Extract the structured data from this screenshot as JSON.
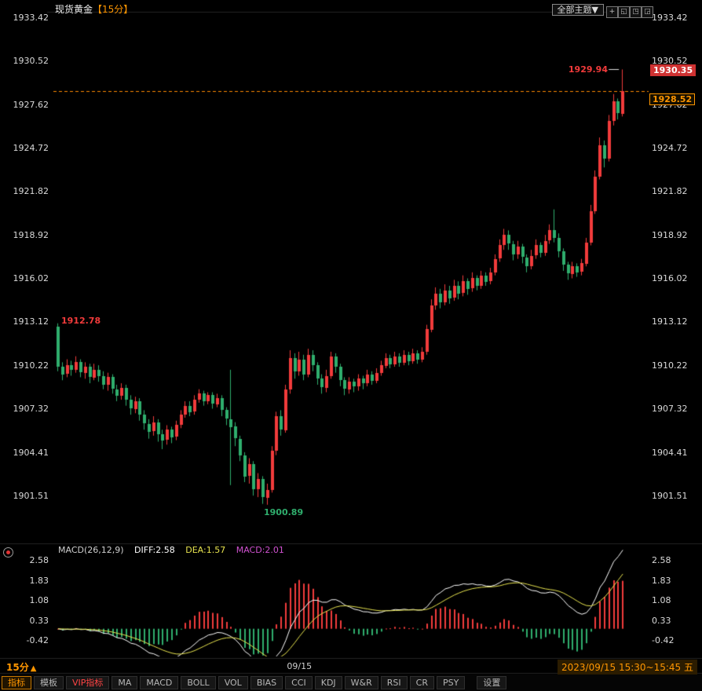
{
  "colors": {
    "up": "#f23b3b",
    "down": "#2fae6d",
    "accent_orange": "#ff9600",
    "dashed_line": "#ff8a00",
    "diff_line": "#ffffff",
    "dea_line": "#e8e44f",
    "macd_value": "#d052d0",
    "axis_text": "#d9d9d9",
    "tag_bg": "#cf3232",
    "vip_red": "#ff4545"
  },
  "header": {
    "instrument": "现货黄金",
    "period": "【15分】",
    "theme_button": "全部主题▼",
    "tool_icons": [
      {
        "name": "crosshair-icon",
        "glyph": "+"
      },
      {
        "name": "pane-bottomleft-icon",
        "glyph": "◱"
      },
      {
        "name": "pane-topright-icon",
        "glyph": "◳"
      },
      {
        "name": "pane-bottomright-icon",
        "glyph": "◲"
      }
    ]
  },
  "macd_header": {
    "name_label": "MACD(26,12,9)",
    "diff_label": "DIFF:2.58",
    "dea_label": "DEA:1.57",
    "macd_label": "MACD:2.01"
  },
  "bottom": {
    "period": "15分",
    "period_arrow": "▲",
    "datetime_range": "2023/09/15 15:30~15:45 五"
  },
  "toolbar": {
    "items": [
      {
        "key": "indicators",
        "label": "指标",
        "selected": true
      },
      {
        "key": "templates",
        "label": "模板"
      },
      {
        "key": "vip-indicators",
        "label": "VIP指标",
        "vip": true
      },
      {
        "key": "ma",
        "label": "MA"
      },
      {
        "key": "macd",
        "label": "MACD"
      },
      {
        "key": "boll",
        "label": "BOLL"
      },
      {
        "key": "vol",
        "label": "VOL"
      },
      {
        "key": "bias",
        "label": "BIAS"
      },
      {
        "key": "cci",
        "label": "CCI"
      },
      {
        "key": "kdj",
        "label": "KDJ"
      },
      {
        "key": "wr",
        "label": "W&R"
      },
      {
        "key": "rsi",
        "label": "RSI"
      },
      {
        "key": "cr",
        "label": "CR"
      },
      {
        "key": "psy",
        "label": "PSY"
      },
      {
        "key": "settings",
        "label": "设置",
        "gap": true
      }
    ]
  },
  "chart_data": [
    {
      "type": "candlestick",
      "title": "现货黄金【15分】",
      "timeframe": "15分钟K线",
      "y_ticks": [
        1933.42,
        1930.52,
        1927.62,
        1924.72,
        1921.82,
        1918.92,
        1916.02,
        1913.12,
        1910.22,
        1907.32,
        1904.41,
        1901.51
      ],
      "x_ticks": [
        {
          "label": "09/15",
          "index": 53
        }
      ],
      "annotations": {
        "open": 1912.78,
        "high": 1929.94,
        "low": 1900.89,
        "tag_price": 1930.35
      },
      "last_price_line": 1928.52,
      "candles": [
        [
          1912.78,
          1913.0,
          1909.8,
          1910.1
        ],
        [
          1910.1,
          1910.4,
          1909.2,
          1909.6
        ],
        [
          1909.6,
          1910.6,
          1909.4,
          1910.2
        ],
        [
          1910.2,
          1910.5,
          1909.5,
          1909.9
        ],
        [
          1909.9,
          1910.8,
          1909.7,
          1910.4
        ],
        [
          1910.4,
          1910.6,
          1909.4,
          1909.7
        ],
        [
          1909.7,
          1910.4,
          1909.3,
          1910.1
        ],
        [
          1910.1,
          1910.3,
          1909.0,
          1909.4
        ],
        [
          1909.4,
          1910.3,
          1909.2,
          1909.9
        ],
        [
          1909.9,
          1910.2,
          1909.1,
          1909.5
        ],
        [
          1909.5,
          1909.8,
          1908.6,
          1908.9
        ],
        [
          1908.9,
          1909.7,
          1908.5,
          1909.4
        ],
        [
          1909.4,
          1909.6,
          1908.3,
          1908.6
        ],
        [
          1908.6,
          1908.9,
          1907.8,
          1908.2
        ],
        [
          1908.2,
          1909.0,
          1907.9,
          1908.7
        ],
        [
          1908.7,
          1908.9,
          1907.5,
          1907.9
        ],
        [
          1907.9,
          1908.2,
          1906.9,
          1907.3
        ],
        [
          1907.3,
          1908.1,
          1907.0,
          1907.8
        ],
        [
          1907.8,
          1908.0,
          1906.5,
          1906.9
        ],
        [
          1906.9,
          1907.2,
          1905.9,
          1906.3
        ],
        [
          1906.3,
          1906.6,
          1905.3,
          1905.8
        ],
        [
          1905.8,
          1906.8,
          1905.5,
          1906.4
        ],
        [
          1906.4,
          1906.6,
          1905.1,
          1905.6
        ],
        [
          1905.6,
          1905.9,
          1904.6,
          1905.2
        ],
        [
          1905.2,
          1906.2,
          1904.9,
          1905.9
        ],
        [
          1905.9,
          1906.1,
          1905.0,
          1905.4
        ],
        [
          1905.4,
          1906.5,
          1905.2,
          1906.2
        ],
        [
          1906.2,
          1907.2,
          1906.0,
          1906.9
        ],
        [
          1906.9,
          1907.8,
          1906.7,
          1907.5
        ],
        [
          1907.5,
          1907.8,
          1906.8,
          1907.1
        ],
        [
          1907.1,
          1908.2,
          1906.9,
          1907.9
        ],
        [
          1907.9,
          1908.6,
          1907.7,
          1908.3
        ],
        [
          1908.3,
          1908.5,
          1907.5,
          1907.8
        ],
        [
          1907.8,
          1908.4,
          1907.6,
          1908.2
        ],
        [
          1908.2,
          1908.4,
          1907.3,
          1907.6
        ],
        [
          1907.6,
          1908.3,
          1907.4,
          1908.0
        ],
        [
          1908.0,
          1908.2,
          1906.8,
          1907.2
        ],
        [
          1907.2,
          1907.4,
          1906.2,
          1906.6
        ],
        [
          1906.6,
          1909.9,
          1902.2,
          1906.1
        ],
        [
          1906.1,
          1906.4,
          1904.8,
          1905.3
        ],
        [
          1905.3,
          1905.5,
          1903.8,
          1904.2
        ],
        [
          1904.2,
          1904.4,
          1902.4,
          1902.8
        ],
        [
          1902.8,
          1904.0,
          1902.3,
          1903.6
        ],
        [
          1903.6,
          1903.8,
          1901.5,
          1901.9
        ],
        [
          1901.9,
          1903.0,
          1901.4,
          1902.6
        ],
        [
          1902.6,
          1902.8,
          1900.95,
          1901.4
        ],
        [
          1901.4,
          1902.3,
          1900.89,
          1901.9
        ],
        [
          1901.9,
          1904.8,
          1901.7,
          1904.5
        ],
        [
          1904.5,
          1907.1,
          1904.2,
          1906.8
        ],
        [
          1906.8,
          1907.2,
          1905.5,
          1905.9
        ],
        [
          1905.9,
          1908.9,
          1905.7,
          1908.6
        ],
        [
          1908.6,
          1911.2,
          1908.3,
          1910.7
        ],
        [
          1910.7,
          1911.0,
          1909.3,
          1909.8
        ],
        [
          1909.8,
          1911.1,
          1909.5,
          1910.6
        ],
        [
          1910.6,
          1910.9,
          1909.2,
          1909.6
        ],
        [
          1909.6,
          1911.3,
          1909.4,
          1910.9
        ],
        [
          1910.9,
          1911.2,
          1909.8,
          1910.2
        ],
        [
          1910.2,
          1910.4,
          1908.9,
          1909.3
        ],
        [
          1909.3,
          1909.6,
          1908.3,
          1908.7
        ],
        [
          1908.7,
          1909.9,
          1908.4,
          1909.5
        ],
        [
          1909.5,
          1911.1,
          1909.3,
          1910.8
        ],
        [
          1910.8,
          1911.0,
          1909.7,
          1910.1
        ],
        [
          1910.1,
          1910.3,
          1908.8,
          1909.2
        ],
        [
          1909.2,
          1909.4,
          1908.2,
          1908.6
        ],
        [
          1908.6,
          1909.4,
          1908.3,
          1909.1
        ],
        [
          1909.1,
          1909.3,
          1908.4,
          1908.8
        ],
        [
          1908.8,
          1909.6,
          1908.5,
          1909.3
        ],
        [
          1909.3,
          1909.5,
          1908.6,
          1909.0
        ],
        [
          1909.0,
          1909.9,
          1908.8,
          1909.6
        ],
        [
          1909.6,
          1909.8,
          1908.9,
          1909.2
        ],
        [
          1909.2,
          1910.0,
          1909.0,
          1909.7
        ],
        [
          1909.7,
          1910.5,
          1909.5,
          1910.2
        ],
        [
          1910.2,
          1911.0,
          1910.0,
          1910.7
        ],
        [
          1910.7,
          1910.9,
          1910.0,
          1910.3
        ],
        [
          1910.3,
          1911.1,
          1910.1,
          1910.8
        ],
        [
          1910.8,
          1911.0,
          1910.1,
          1910.4
        ],
        [
          1910.4,
          1911.2,
          1910.2,
          1910.9
        ],
        [
          1910.9,
          1911.1,
          1910.2,
          1910.5
        ],
        [
          1910.5,
          1911.3,
          1910.3,
          1911.0
        ],
        [
          1911.0,
          1911.2,
          1910.3,
          1910.6
        ],
        [
          1910.6,
          1911.4,
          1910.4,
          1911.1
        ],
        [
          1911.1,
          1912.9,
          1910.9,
          1912.6
        ],
        [
          1912.6,
          1914.6,
          1912.4,
          1914.2
        ],
        [
          1914.2,
          1915.4,
          1913.9,
          1915.0
        ],
        [
          1915.0,
          1915.3,
          1914.0,
          1914.4
        ],
        [
          1914.4,
          1915.6,
          1914.2,
          1915.2
        ],
        [
          1915.2,
          1915.5,
          1914.3,
          1914.7
        ],
        [
          1914.7,
          1915.9,
          1914.5,
          1915.5
        ],
        [
          1915.5,
          1915.8,
          1914.6,
          1915.0
        ],
        [
          1915.0,
          1916.2,
          1914.8,
          1915.8
        ],
        [
          1915.8,
          1916.0,
          1914.9,
          1915.3
        ],
        [
          1915.3,
          1916.4,
          1915.1,
          1916.0
        ],
        [
          1916.0,
          1916.2,
          1915.2,
          1915.5
        ],
        [
          1915.5,
          1916.5,
          1915.3,
          1916.2
        ],
        [
          1916.2,
          1916.4,
          1915.5,
          1915.8
        ],
        [
          1915.8,
          1916.7,
          1915.6,
          1916.4
        ],
        [
          1916.4,
          1917.6,
          1916.2,
          1917.3
        ],
        [
          1917.3,
          1918.6,
          1917.1,
          1918.2
        ],
        [
          1918.2,
          1919.3,
          1917.9,
          1918.9
        ],
        [
          1918.9,
          1919.2,
          1917.9,
          1918.3
        ],
        [
          1918.3,
          1918.5,
          1917.2,
          1917.6
        ],
        [
          1917.6,
          1918.5,
          1917.3,
          1918.1
        ],
        [
          1918.1,
          1918.3,
          1917.0,
          1917.4
        ],
        [
          1917.4,
          1917.6,
          1916.4,
          1916.8
        ],
        [
          1916.8,
          1917.9,
          1916.6,
          1917.5
        ],
        [
          1917.5,
          1918.6,
          1917.3,
          1918.2
        ],
        [
          1918.2,
          1918.4,
          1917.4,
          1917.7
        ],
        [
          1917.7,
          1918.9,
          1917.5,
          1918.5
        ],
        [
          1918.5,
          1919.6,
          1918.3,
          1919.2
        ],
        [
          1919.2,
          1920.6,
          1918.4,
          1918.7
        ],
        [
          1918.7,
          1919.0,
          1917.4,
          1917.8
        ],
        [
          1917.8,
          1918.0,
          1916.5,
          1916.9
        ],
        [
          1916.9,
          1917.1,
          1915.9,
          1916.3
        ],
        [
          1916.3,
          1917.1,
          1916.0,
          1916.8
        ],
        [
          1916.8,
          1917.0,
          1916.1,
          1916.4
        ],
        [
          1916.4,
          1917.3,
          1916.2,
          1917.0
        ],
        [
          1917.0,
          1918.7,
          1916.8,
          1918.4
        ],
        [
          1918.4,
          1920.9,
          1918.2,
          1920.5
        ],
        [
          1920.5,
          1923.2,
          1920.3,
          1922.8
        ],
        [
          1922.8,
          1925.4,
          1922.6,
          1924.9
        ],
        [
          1924.9,
          1925.2,
          1923.4,
          1924.0
        ],
        [
          1924.0,
          1926.9,
          1923.8,
          1926.5
        ],
        [
          1926.5,
          1928.3,
          1926.2,
          1927.8
        ],
        [
          1927.8,
          1928.0,
          1926.6,
          1927.0
        ],
        [
          1927.0,
          1929.94,
          1926.8,
          1928.52
        ]
      ]
    },
    {
      "type": "macd",
      "label": "MACD(26,12,9)",
      "params": [
        26,
        12,
        9
      ],
      "diff": 2.58,
      "dea": 1.57,
      "macd": 2.01,
      "y_ticks": [
        2.58,
        1.83,
        1.08,
        0.33,
        -0.42
      ]
    }
  ]
}
